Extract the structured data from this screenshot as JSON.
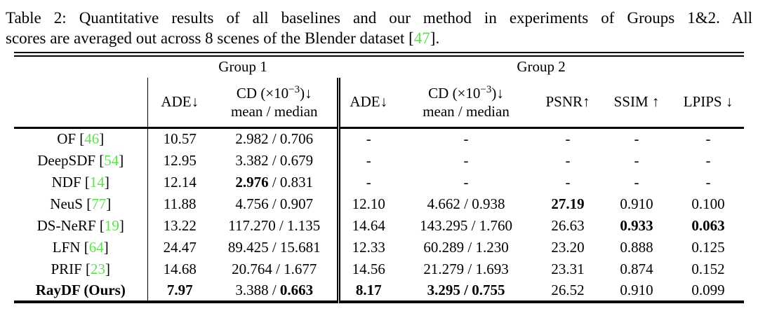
{
  "colors": {
    "citation_green": "#5CE24E",
    "text": "#000000",
    "background": "#FFFFFF"
  },
  "caption": {
    "line1": "Table 2: Quantitative results of all baselines and our method in experiments of Groups 1&2. All",
    "line2_before": "scores are averaged out across 8 scenes of the Blender dataset [",
    "ref": "47",
    "line2_after": "]."
  },
  "header": {
    "group1": "Group 1",
    "group2": "Group 2",
    "ade_g1": "ADE↓",
    "ade_g2": "ADE↓",
    "cd_g1": {
      "line1_pre": "CD (×10",
      "sup": "−3",
      "line1_post": ")↓",
      "line2": "mean / median"
    },
    "cd_g2": {
      "line1_pre": "CD (×10",
      "sup": "−3",
      "line1_post": ")↓",
      "line2": "mean / median"
    },
    "psnr": "PSNR↑",
    "ssim": "SSIM ↑",
    "lpips": "LPIPS ↓"
  },
  "table": {
    "rows": [
      {
        "method": {
          "name": "OF",
          "ref": "46",
          "bold": false
        },
        "cells": [
          {
            "parts": [
              {
                "t": "10.57",
                "b": false
              }
            ]
          },
          {
            "parts": [
              {
                "t": "2.982",
                "b": false
              },
              {
                "t": " / ",
                "b": false
              },
              {
                "t": "0.706",
                "b": false
              }
            ]
          },
          {
            "parts": [
              {
                "t": "-",
                "b": false
              }
            ]
          },
          {
            "parts": [
              {
                "t": "-",
                "b": false
              }
            ]
          },
          {
            "parts": [
              {
                "t": "-",
                "b": false
              }
            ]
          },
          {
            "parts": [
              {
                "t": "-",
                "b": false
              }
            ]
          },
          {
            "parts": [
              {
                "t": "-",
                "b": false
              }
            ]
          }
        ]
      },
      {
        "method": {
          "name": "DeepSDF",
          "ref": "54",
          "bold": false
        },
        "cells": [
          {
            "parts": [
              {
                "t": "12.95",
                "b": false
              }
            ]
          },
          {
            "parts": [
              {
                "t": "3.382",
                "b": false
              },
              {
                "t": " / ",
                "b": false
              },
              {
                "t": "0.679",
                "b": false
              }
            ]
          },
          {
            "parts": [
              {
                "t": "-",
                "b": false
              }
            ]
          },
          {
            "parts": [
              {
                "t": "-",
                "b": false
              }
            ]
          },
          {
            "parts": [
              {
                "t": "-",
                "b": false
              }
            ]
          },
          {
            "parts": [
              {
                "t": "-",
                "b": false
              }
            ]
          },
          {
            "parts": [
              {
                "t": "-",
                "b": false
              }
            ]
          }
        ]
      },
      {
        "method": {
          "name": "NDF",
          "ref": "14",
          "bold": false
        },
        "cells": [
          {
            "parts": [
              {
                "t": "12.14",
                "b": false
              }
            ]
          },
          {
            "parts": [
              {
                "t": "2.976",
                "b": true
              },
              {
                "t": " / ",
                "b": false
              },
              {
                "t": "0.831",
                "b": false
              }
            ]
          },
          {
            "parts": [
              {
                "t": "-",
                "b": false
              }
            ]
          },
          {
            "parts": [
              {
                "t": "-",
                "b": false
              }
            ]
          },
          {
            "parts": [
              {
                "t": "-",
                "b": false
              }
            ]
          },
          {
            "parts": [
              {
                "t": "-",
                "b": false
              }
            ]
          },
          {
            "parts": [
              {
                "t": "-",
                "b": false
              }
            ]
          }
        ]
      },
      {
        "method": {
          "name": "NeuS",
          "ref": "77",
          "bold": false
        },
        "cells": [
          {
            "parts": [
              {
                "t": "11.88",
                "b": false
              }
            ]
          },
          {
            "parts": [
              {
                "t": "4.756",
                "b": false
              },
              {
                "t": " / ",
                "b": false
              },
              {
                "t": "0.907",
                "b": false
              }
            ]
          },
          {
            "parts": [
              {
                "t": "12.10",
                "b": false
              }
            ]
          },
          {
            "parts": [
              {
                "t": "4.662",
                "b": false
              },
              {
                "t": " / ",
                "b": false
              },
              {
                "t": "0.938",
                "b": false
              }
            ]
          },
          {
            "parts": [
              {
                "t": "27.19",
                "b": true
              }
            ]
          },
          {
            "parts": [
              {
                "t": "0.910",
                "b": false
              }
            ]
          },
          {
            "parts": [
              {
                "t": "0.100",
                "b": false
              }
            ]
          }
        ]
      },
      {
        "method": {
          "name": "DS-NeRF",
          "ref": "19",
          "bold": false
        },
        "cells": [
          {
            "parts": [
              {
                "t": "13.22",
                "b": false
              }
            ]
          },
          {
            "parts": [
              {
                "t": "117.270",
                "b": false
              },
              {
                "t": " / ",
                "b": false
              },
              {
                "t": "1.135",
                "b": false
              }
            ]
          },
          {
            "parts": [
              {
                "t": "14.64",
                "b": false
              }
            ]
          },
          {
            "parts": [
              {
                "t": "143.295",
                "b": false
              },
              {
                "t": " / ",
                "b": false
              },
              {
                "t": "1.760",
                "b": false
              }
            ]
          },
          {
            "parts": [
              {
                "t": "26.63",
                "b": false
              }
            ]
          },
          {
            "parts": [
              {
                "t": "0.933",
                "b": true
              }
            ]
          },
          {
            "parts": [
              {
                "t": "0.063",
                "b": true
              }
            ]
          }
        ]
      },
      {
        "method": {
          "name": "LFN",
          "ref": "64",
          "bold": false
        },
        "cells": [
          {
            "parts": [
              {
                "t": "24.47",
                "b": false
              }
            ]
          },
          {
            "parts": [
              {
                "t": "89.425",
                "b": false
              },
              {
                "t": " / ",
                "b": false
              },
              {
                "t": "15.681",
                "b": false
              }
            ]
          },
          {
            "parts": [
              {
                "t": "12.33",
                "b": false
              }
            ]
          },
          {
            "parts": [
              {
                "t": "60.289",
                "b": false
              },
              {
                "t": " / ",
                "b": false
              },
              {
                "t": "1.230",
                "b": false
              }
            ]
          },
          {
            "parts": [
              {
                "t": "23.20",
                "b": false
              }
            ]
          },
          {
            "parts": [
              {
                "t": "0.888",
                "b": false
              }
            ]
          },
          {
            "parts": [
              {
                "t": "0.125",
                "b": false
              }
            ]
          }
        ]
      },
      {
        "method": {
          "name": "PRIF",
          "ref": "23",
          "bold": false
        },
        "cells": [
          {
            "parts": [
              {
                "t": "14.68",
                "b": false
              }
            ]
          },
          {
            "parts": [
              {
                "t": "20.764",
                "b": false
              },
              {
                "t": " / ",
                "b": false
              },
              {
                "t": "1.677",
                "b": false
              }
            ]
          },
          {
            "parts": [
              {
                "t": "14.56",
                "b": false
              }
            ]
          },
          {
            "parts": [
              {
                "t": "21.279",
                "b": false
              },
              {
                "t": " / ",
                "b": false
              },
              {
                "t": "1.693",
                "b": false
              }
            ]
          },
          {
            "parts": [
              {
                "t": "23.31",
                "b": false
              }
            ]
          },
          {
            "parts": [
              {
                "t": "0.874",
                "b": false
              }
            ]
          },
          {
            "parts": [
              {
                "t": "0.152",
                "b": false
              }
            ]
          }
        ]
      },
      {
        "method": {
          "name": "RayDF (Ours)",
          "ref": null,
          "bold": true
        },
        "cells": [
          {
            "parts": [
              {
                "t": "7.97",
                "b": true
              }
            ]
          },
          {
            "parts": [
              {
                "t": "3.388",
                "b": false
              },
              {
                "t": " / ",
                "b": false
              },
              {
                "t": "0.663",
                "b": true
              }
            ]
          },
          {
            "parts": [
              {
                "t": "8.17",
                "b": true
              }
            ]
          },
          {
            "parts": [
              {
                "t": "3.295",
                "b": true
              },
              {
                "t": " / ",
                "b": true
              },
              {
                "t": "0.755",
                "b": true
              }
            ]
          },
          {
            "parts": [
              {
                "t": "26.52",
                "b": false
              }
            ]
          },
          {
            "parts": [
              {
                "t": "0.910",
                "b": false
              }
            ]
          },
          {
            "parts": [
              {
                "t": "0.099",
                "b": false
              }
            ]
          }
        ]
      }
    ]
  }
}
